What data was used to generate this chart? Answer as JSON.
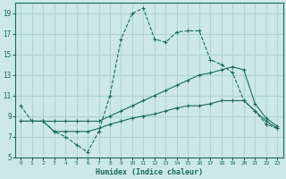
{
  "xlabel": "Humidex (Indice chaleur)",
  "bg_color": "#cce8e8",
  "grid_color": "#b0d4d4",
  "line_color": "#1a6b5a",
  "xlim": [
    -0.5,
    23.5
  ],
  "ylim": [
    5,
    20
  ],
  "xticks": [
    0,
    1,
    2,
    3,
    4,
    5,
    6,
    7,
    8,
    9,
    10,
    11,
    12,
    13,
    14,
    15,
    16,
    17,
    18,
    19,
    20,
    21,
    22,
    23
  ],
  "yticks": [
    5,
    7,
    9,
    11,
    13,
    15,
    17,
    19
  ],
  "line1_x": [
    0,
    1,
    2,
    3,
    4,
    5,
    6,
    7,
    8,
    9,
    10,
    11,
    12,
    13,
    14,
    15,
    16,
    17,
    18,
    19,
    20,
    21,
    22,
    23
  ],
  "line1_y": [
    10.0,
    8.5,
    8.5,
    7.5,
    7.0,
    6.2,
    5.5,
    7.5,
    11.0,
    16.5,
    19.0,
    19.5,
    16.5,
    16.2,
    17.2,
    17.3,
    17.3,
    14.5,
    14.0,
    13.2,
    10.5,
    9.5,
    8.2,
    7.8
  ],
  "line2_x": [
    0,
    2,
    3,
    4,
    5,
    6,
    7,
    8,
    9,
    10,
    11,
    12,
    13,
    14,
    15,
    16,
    17,
    18,
    19,
    20,
    21,
    22,
    23
  ],
  "line2_y": [
    8.5,
    8.5,
    8.5,
    8.5,
    8.5,
    8.5,
    8.5,
    9.0,
    9.5,
    10.0,
    10.5,
    11.0,
    11.5,
    12.0,
    12.5,
    13.0,
    13.2,
    13.5,
    13.8,
    13.5,
    10.2,
    8.8,
    8.0
  ],
  "line3_x": [
    0,
    1,
    2,
    3,
    4,
    5,
    6,
    7,
    8,
    9,
    10,
    11,
    12,
    13,
    14,
    15,
    16,
    17,
    18,
    19,
    20,
    21,
    22,
    23
  ],
  "line3_y": [
    8.5,
    8.5,
    8.5,
    7.5,
    7.5,
    7.5,
    7.5,
    7.8,
    8.2,
    8.5,
    8.8,
    9.0,
    9.2,
    9.5,
    9.8,
    10.0,
    10.0,
    10.2,
    10.5,
    10.5,
    10.5,
    9.5,
    8.5,
    7.8
  ]
}
